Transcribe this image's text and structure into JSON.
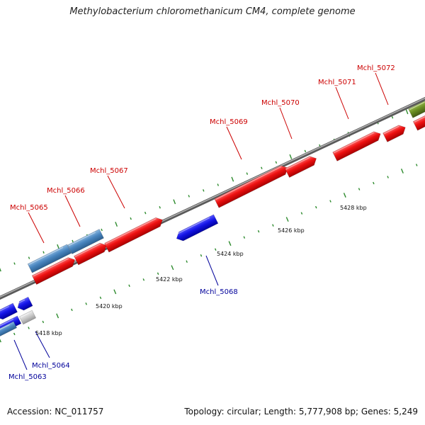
{
  "title": "Methylobacterium chloromethanicum CM4, complete genome",
  "footer": {
    "accession": "Accession: NC_011757",
    "topology": "Topology: circular; Length: 5,777,908 bp; Genes: 5,249"
  },
  "colors": {
    "forward_gene": "#e31a1c",
    "reverse_gene": "#1010e0",
    "forward_label": "#cc0000",
    "reverse_label": "#00009a",
    "steel_blue_gene": "#4a86c0",
    "olive_gene": "#6b8e23",
    "grey_gene": "#c8c8c8",
    "tick_mark": "#2e8b2e",
    "backbone": "#808080"
  },
  "tick_labels": [
    {
      "kbp": 5418,
      "text": "5418 kbp"
    },
    {
      "kbp": 5420,
      "text": "5420 kbp"
    },
    {
      "kbp": 5422,
      "text": "5422 kbp"
    },
    {
      "kbp": 5424,
      "text": "5424 kbp"
    },
    {
      "kbp": 5426,
      "text": "5426 kbp"
    },
    {
      "kbp": 5428,
      "text": "5428 kbp"
    }
  ],
  "genes": [
    {
      "label": "Mchl_5063",
      "strand": "reverse"
    },
    {
      "label": "Mchl_5064",
      "strand": "reverse"
    },
    {
      "label": "Mchl_5065",
      "strand": "forward"
    },
    {
      "label": "Mchl_5066",
      "strand": "forward"
    },
    {
      "label": "Mchl_5067",
      "strand": "forward"
    },
    {
      "label": "Mchl_5068",
      "strand": "reverse"
    },
    {
      "label": "Mchl_5069",
      "strand": "forward"
    },
    {
      "label": "Mchl_5070",
      "strand": "forward"
    },
    {
      "label": "Mchl_5071",
      "strand": "forward"
    },
    {
      "label": "Mchl_5072",
      "strand": "forward"
    }
  ]
}
